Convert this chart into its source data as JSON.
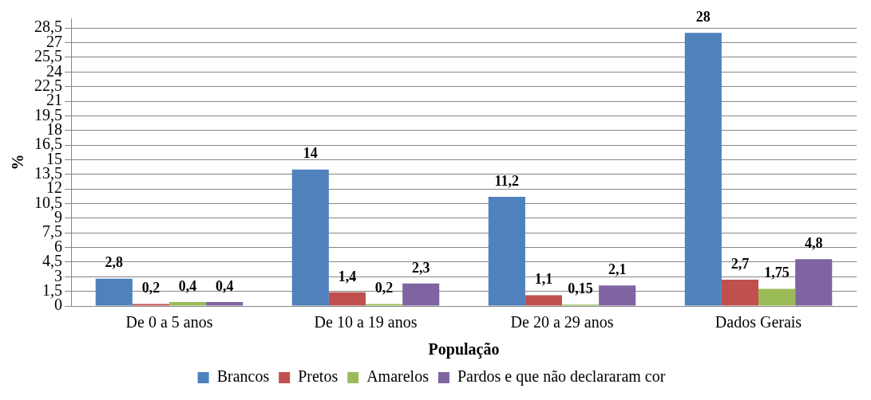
{
  "chart_data": {
    "type": "bar",
    "xlabel": "População",
    "ylabel": "%",
    "categories": [
      "De 0 a 5 anos",
      "De 10 a 19 anos",
      "De 20 a 29 anos",
      "Dados Gerais"
    ],
    "series": [
      {
        "name": "Brancos",
        "color": "#4f81bd",
        "values": [
          2.8,
          14,
          11.2,
          28
        ],
        "value_labels": [
          "2,8",
          "14",
          "11,2",
          "28"
        ]
      },
      {
        "name": "Pretos",
        "color": "#c0504d",
        "values": [
          0.2,
          1.4,
          1.1,
          2.7
        ],
        "value_labels": [
          "0,2",
          "1,4",
          "1,1",
          "2,7"
        ]
      },
      {
        "name": "Amarelos",
        "color": "#9bbb59",
        "values": [
          0.4,
          0.2,
          0.15,
          1.75
        ],
        "value_labels": [
          "0,4",
          "0,2",
          "0,15",
          "1,75"
        ]
      },
      {
        "name": "Pardos e que não declararam cor",
        "color": "#8064a2",
        "values": [
          0.4,
          2.3,
          2.1,
          4.8
        ],
        "value_labels": [
          "0,4",
          "2,3",
          "2,1",
          "4,8"
        ]
      }
    ],
    "ylim": [
      0,
      29.5
    ],
    "yticks": [
      0,
      {
        "value": 1.5,
        "label": "1,5"
      },
      3,
      {
        "value": 4.5,
        "label": "4,5"
      },
      6,
      {
        "value": 7.5,
        "label": "7,5"
      },
      9,
      {
        "value": 10.5,
        "label": "10,5"
      },
      12,
      {
        "value": 13.5,
        "label": "13,5"
      },
      15,
      {
        "value": 16.5,
        "label": "16,5"
      },
      18,
      {
        "value": 19.5,
        "label": "19,5"
      },
      21,
      {
        "value": 22.5,
        "label": "22,5"
      },
      24,
      {
        "value": 25.5,
        "label": "25,5"
      },
      27,
      {
        "value": 28.5,
        "label": "28,5"
      }
    ],
    "grid": "y",
    "legend": "bottom"
  }
}
